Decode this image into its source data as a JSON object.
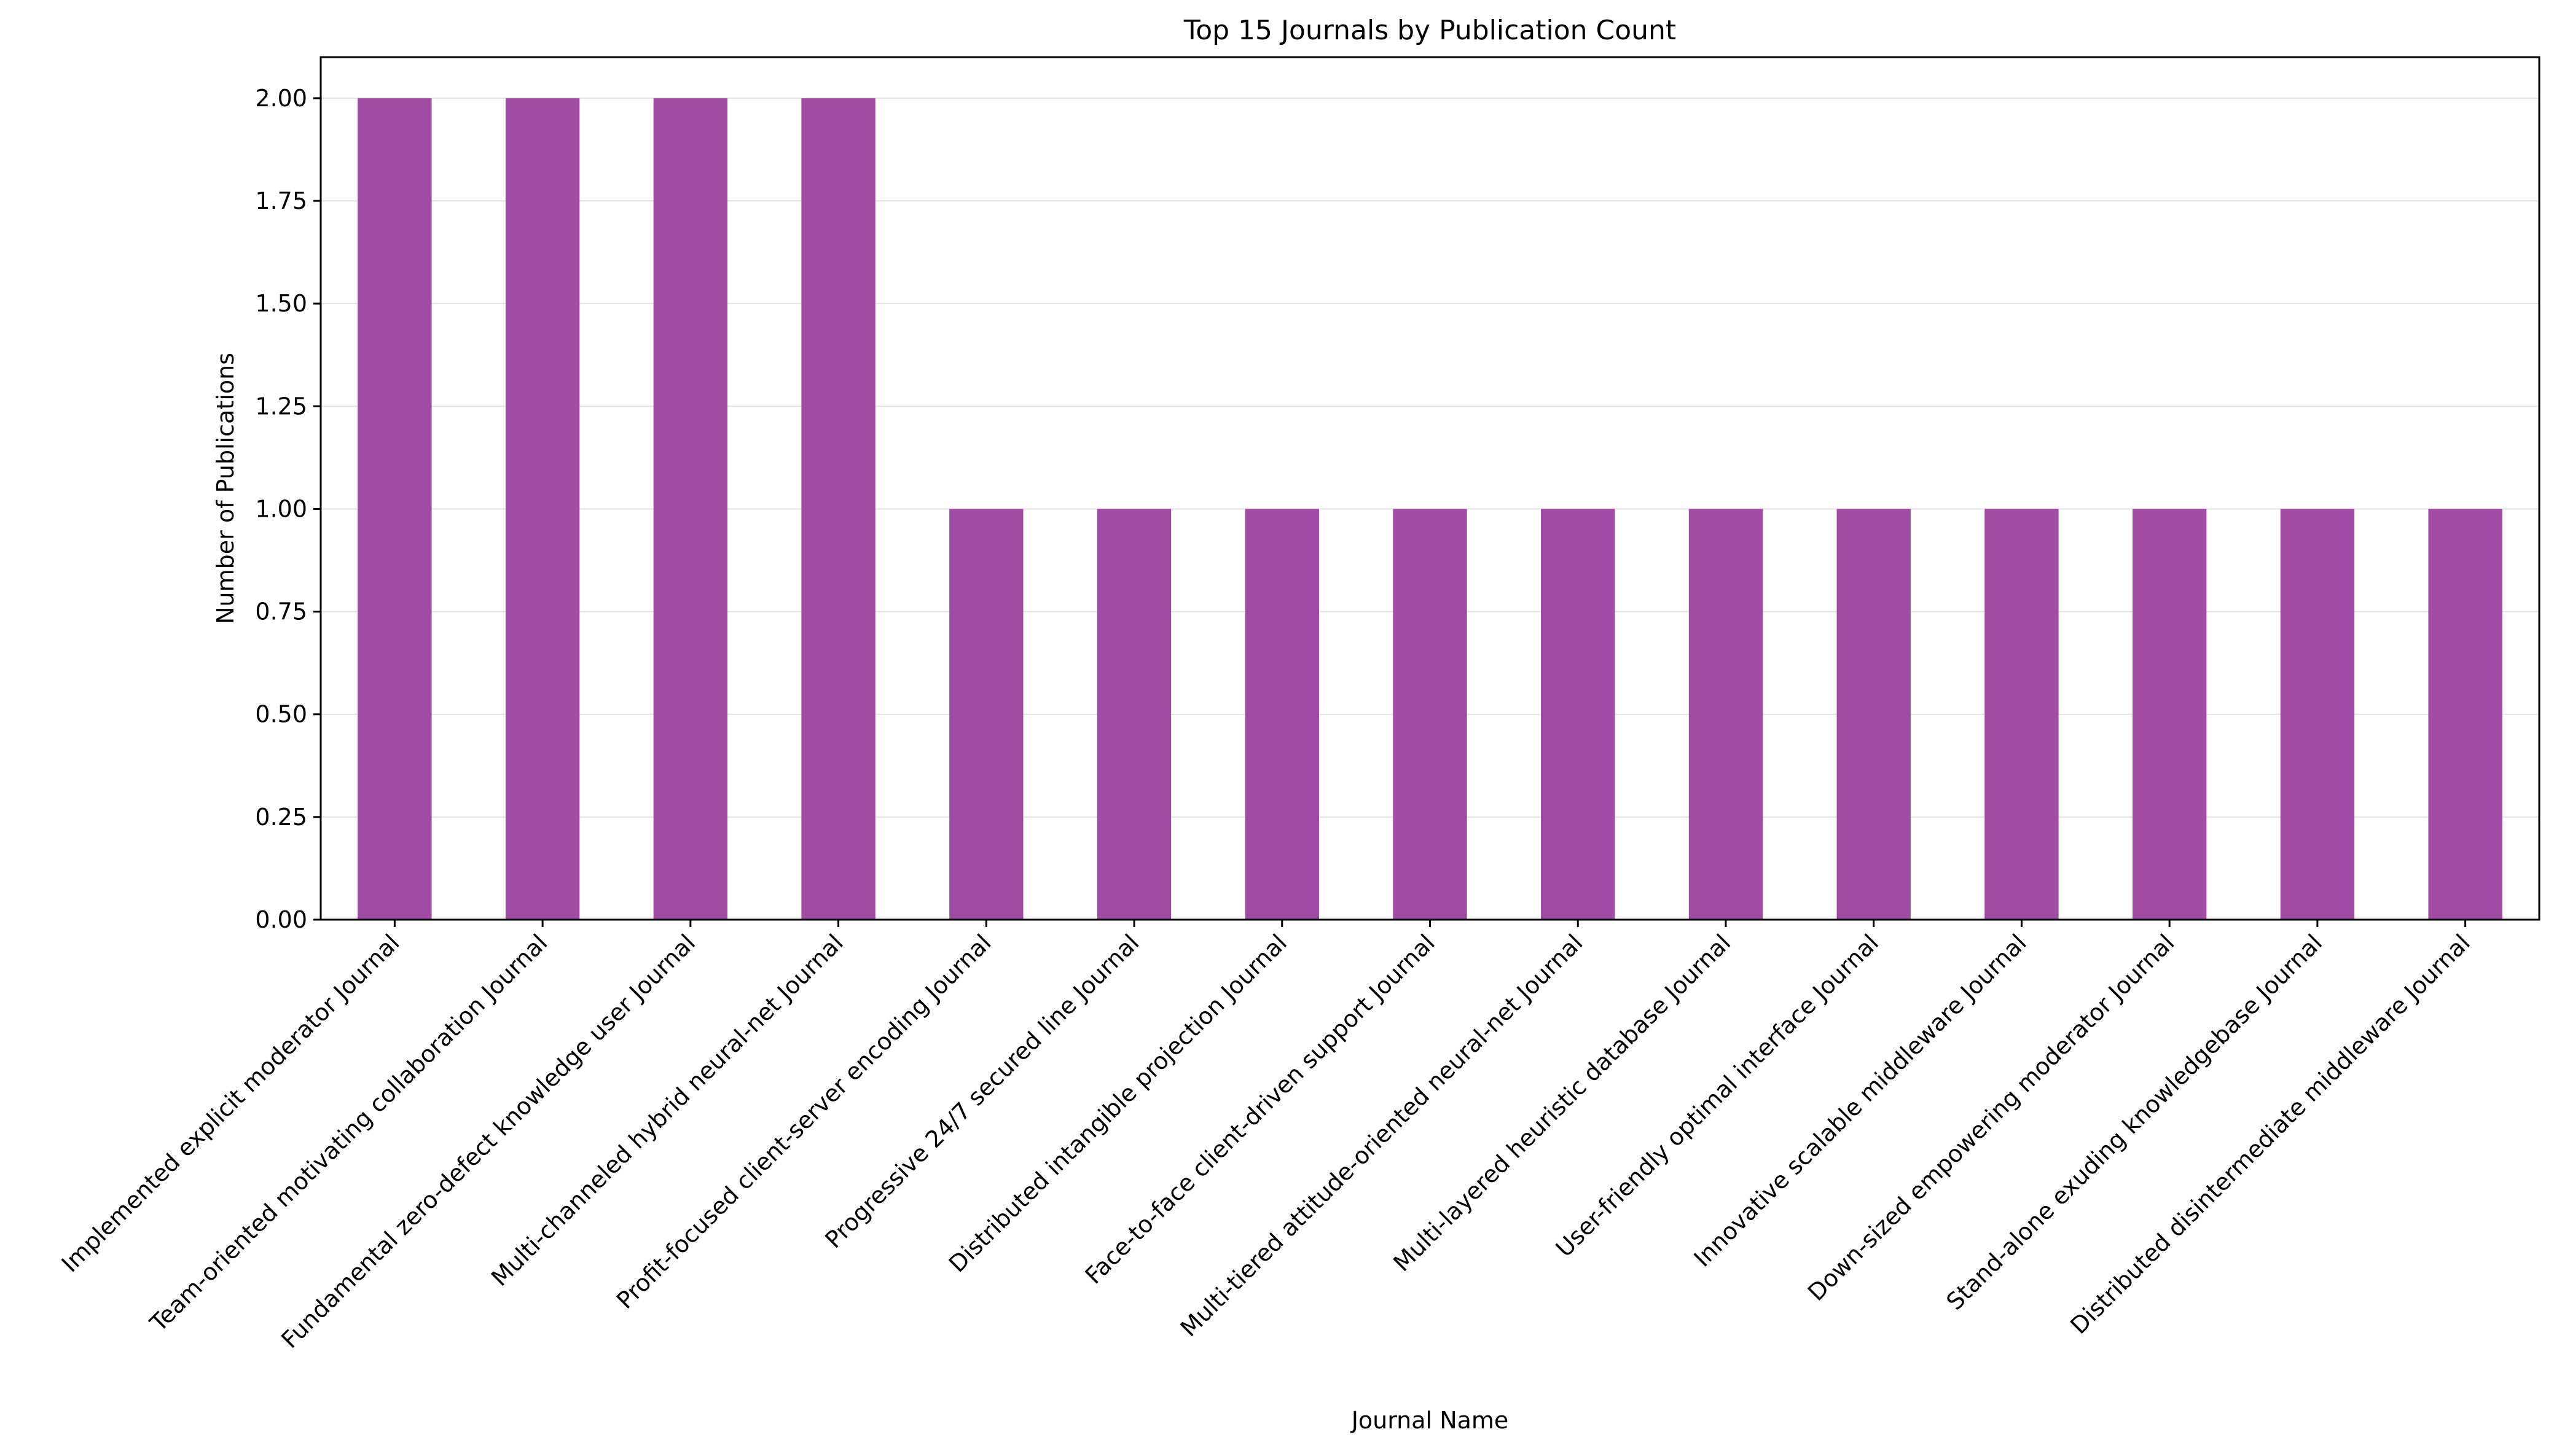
{
  "chart_data": {
    "type": "bar",
    "title": "Top 15 Journals by Publication Count",
    "xlabel": "Journal Name",
    "ylabel": "Number of Publications",
    "ylim": [
      0,
      2.1
    ],
    "yticks": [
      0,
      0.25,
      0.5,
      0.75,
      1.0,
      1.25,
      1.5,
      1.75,
      2.0
    ],
    "ytick_labels": [
      "0.00",
      "0.25",
      "0.50",
      "0.75",
      "1.00",
      "1.25",
      "1.50",
      "1.75",
      "2.00"
    ],
    "grid": "y",
    "legend": "none",
    "bar_color": "#a24ba5",
    "categories": [
      "Implemented explicit moderator Journal",
      "Team-oriented motivating collaboration Journal",
      "Fundamental zero-defect knowledge user Journal",
      "Multi-channeled hybrid neural-net Journal",
      "Profit-focused client-server encoding Journal",
      "Progressive 24/7 secured line Journal",
      "Distributed intangible projection Journal",
      "Face-to-face client-driven support Journal",
      "Multi-tiered attitude-oriented neural-net Journal",
      "Multi-layered heuristic database Journal",
      "User-friendly optimal interface Journal",
      "Innovative scalable middleware Journal",
      "Down-sized empowering moderator Journal",
      "Stand-alone exuding knowledgebase Journal",
      "Distributed disintermediate middleware Journal"
    ],
    "values": [
      2,
      2,
      2,
      2,
      1,
      1,
      1,
      1,
      1,
      1,
      1,
      1,
      1,
      1,
      1
    ]
  }
}
